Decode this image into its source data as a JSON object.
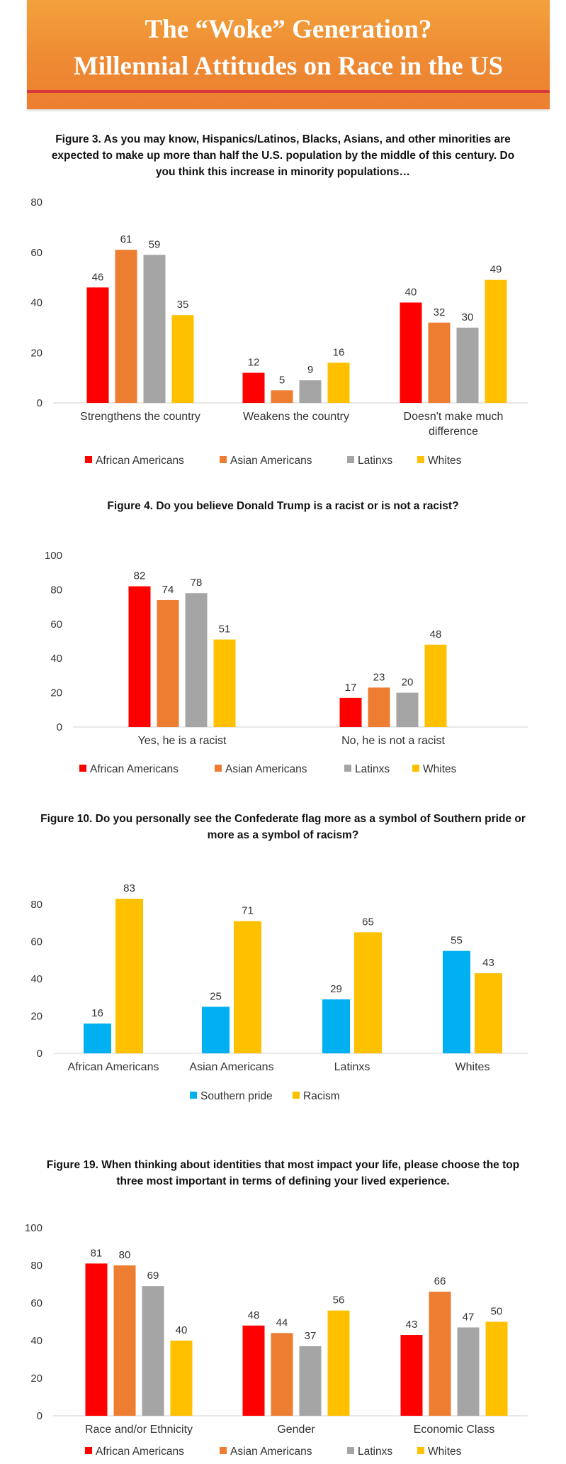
{
  "banner": {
    "line1": "The “Woke” Generation?",
    "line2": "Millennial Attitudes on Race in the US"
  },
  "colors": {
    "african_americans": "#ff0000",
    "asian_americans": "#ed7d31",
    "latinxs": "#a5a5a5",
    "whites": "#ffc000",
    "southern_pride": "#00b0f0",
    "racism": "#ffc000",
    "banner_top": "#f3a23c",
    "banner_bottom": "#ec7f2f",
    "banner_rule": "#d8383a"
  },
  "figures": [
    {
      "title_lines": [
        "Figure 3. As you may know, Hispanics/Latinos, Blacks, Asians, and other minorities are",
        "expected to make up more than half the U.S. population by the middle of this century. Do",
        "you think this increase in minority populations…"
      ]
    },
    {
      "title_lines": [
        "Figure 4. Do you believe Donald Trump is a racist or is not a racist?"
      ]
    },
    {
      "title_lines": [
        "Figure 10. Do you personally see the Confederate flag more as a symbol of Southern pride or",
        "more as a symbol of racism?"
      ]
    },
    {
      "title_lines": [
        "Figure 19. When thinking about identities that most impact your life, please choose the top",
        "three most important in terms of defining your lived experience."
      ]
    }
  ],
  "chart_data": [
    {
      "type": "bar",
      "categories": [
        [
          "Strengthens the country"
        ],
        [
          "Weakens the country"
        ],
        [
          "Doesn't make much",
          "difference"
        ]
      ],
      "series": [
        {
          "name": "African Americans",
          "values": [
            46,
            12,
            40
          ],
          "color": "#ff0000"
        },
        {
          "name": "Asian Americans",
          "values": [
            61,
            5,
            32
          ],
          "color": "#ed7d31"
        },
        {
          "name": "Latinxs",
          "values": [
            59,
            9,
            30
          ],
          "color": "#a5a5a5"
        },
        {
          "name": "Whites",
          "values": [
            35,
            16,
            49
          ],
          "color": "#ffc000"
        }
      ],
      "yticks": [
        0,
        20,
        40,
        60,
        80
      ],
      "ylim": [
        0,
        80
      ],
      "grid": false,
      "legend": "bottom"
    },
    {
      "type": "bar",
      "categories": [
        [
          "Yes, he is a racist"
        ],
        [
          "No, he is not a racist"
        ]
      ],
      "series": [
        {
          "name": "African Americans",
          "values": [
            82,
            17
          ],
          "color": "#ff0000"
        },
        {
          "name": "Asian Americans",
          "values": [
            74,
            23
          ],
          "color": "#ed7d31"
        },
        {
          "name": "Latinxs",
          "values": [
            78,
            20
          ],
          "color": "#a5a5a5"
        },
        {
          "name": "Whites",
          "values": [
            51,
            48
          ],
          "color": "#ffc000"
        }
      ],
      "yticks": [
        0,
        20,
        40,
        60,
        80,
        100
      ],
      "ylim": [
        0,
        100
      ],
      "grid": false,
      "legend": "bottom"
    },
    {
      "type": "bar",
      "categories": [
        [
          "African Americans"
        ],
        [
          "Asian Americans"
        ],
        [
          "Latinxs"
        ],
        [
          "Whites"
        ]
      ],
      "series": [
        {
          "name": "Southern pride",
          "values": [
            16,
            25,
            29,
            55
          ],
          "color": "#00b0f0"
        },
        {
          "name": "Racism",
          "values": [
            83,
            71,
            65,
            43
          ],
          "color": "#ffc000"
        }
      ],
      "yticks": [
        0,
        20,
        40,
        60,
        80
      ],
      "ylim": [
        0,
        80
      ],
      "grid": false,
      "legend": "bottom"
    },
    {
      "type": "bar",
      "categories": [
        [
          "Race and/or Ethnicity"
        ],
        [
          "Gender"
        ],
        [
          "Economic Class"
        ]
      ],
      "series": [
        {
          "name": "African Americans",
          "values": [
            81,
            48,
            43
          ],
          "color": "#ff0000"
        },
        {
          "name": "Asian Americans",
          "values": [
            80,
            44,
            66
          ],
          "color": "#ed7d31"
        },
        {
          "name": "Latinxs",
          "values": [
            69,
            37,
            47
          ],
          "color": "#a5a5a5"
        },
        {
          "name": "Whites",
          "values": [
            40,
            56,
            50
          ],
          "color": "#ffc000"
        }
      ],
      "yticks": [
        0,
        20,
        40,
        60,
        80,
        100
      ],
      "ylim": [
        0,
        100
      ],
      "grid": false,
      "legend": "bottom"
    }
  ]
}
